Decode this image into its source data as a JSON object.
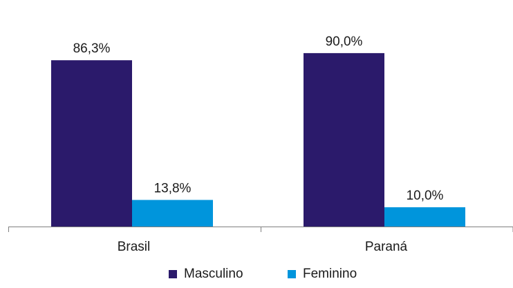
{
  "chart_data": {
    "type": "bar",
    "categories": [
      "Brasil",
      "Paraná"
    ],
    "series": [
      {
        "name": "Masculino",
        "color": "#2b1a6b",
        "values": [
          86.3,
          90.0
        ],
        "labels": [
          "86,3%",
          "90,0%"
        ]
      },
      {
        "name": "Feminino",
        "color": "#0095dc",
        "values": [
          13.8,
          10.0
        ],
        "labels": [
          "13,8%",
          "10,0%"
        ]
      }
    ],
    "title": "",
    "xlabel": "",
    "ylabel": "",
    "ylim": [
      0,
      100
    ],
    "grid": false,
    "legend_position": "bottom-center",
    "axis_color": "#7f7f7f"
  }
}
